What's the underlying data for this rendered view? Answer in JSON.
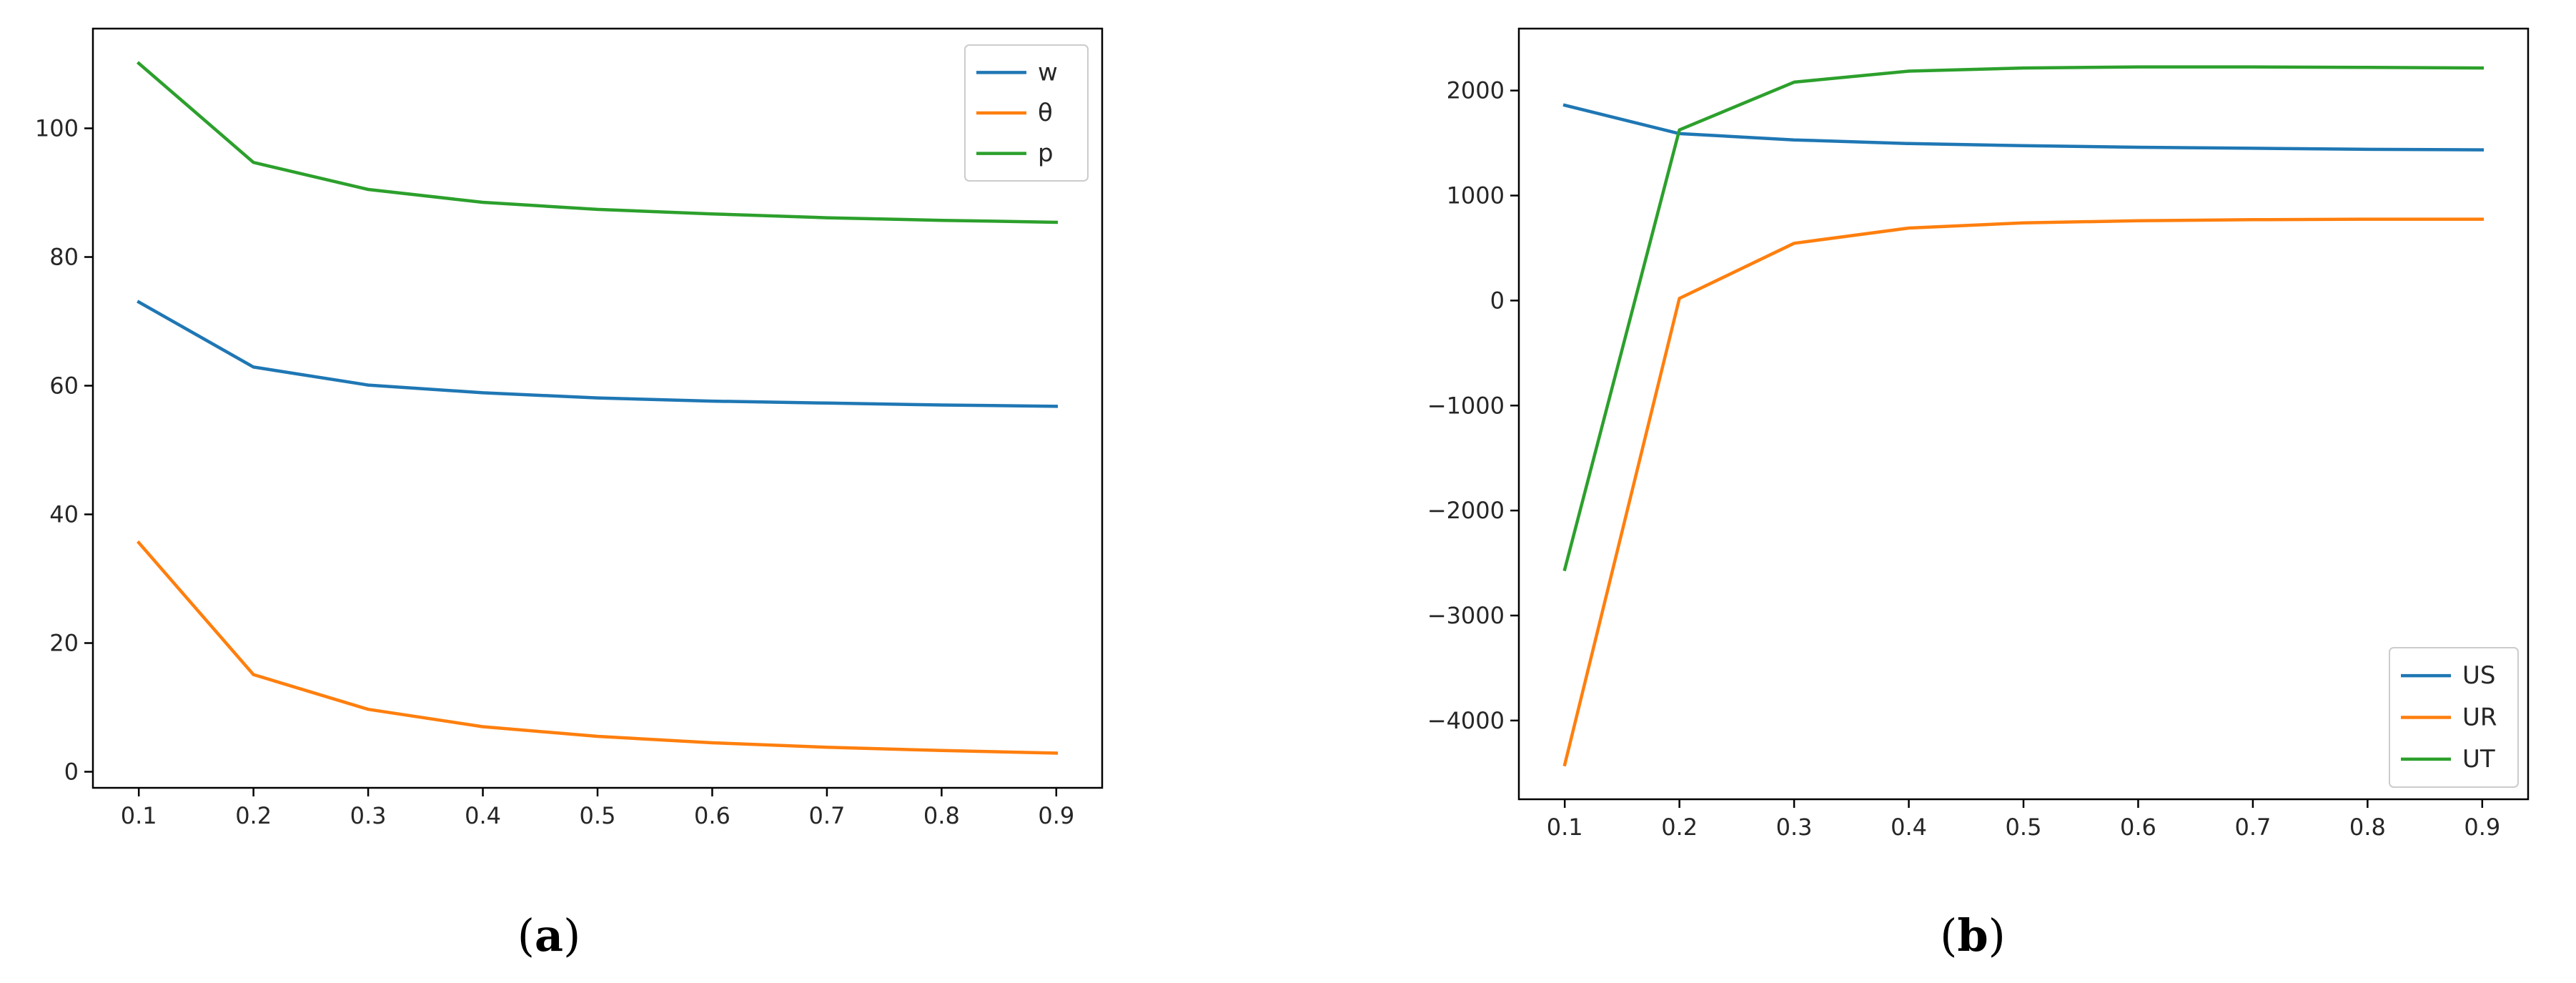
{
  "chart_data": [
    {
      "type": "line",
      "caption": "a",
      "x": [
        0.1,
        0.2,
        0.3,
        0.4,
        0.5,
        0.6,
        0.7,
        0.8,
        0.9
      ],
      "xticks": [
        "0.1",
        "0.2",
        "0.3",
        "0.4",
        "0.5",
        "0.6",
        "0.7",
        "0.8",
        "0.9"
      ],
      "yticks": [
        "0",
        "20",
        "40",
        "60",
        "80",
        "100"
      ],
      "xlim": [
        0.06,
        0.94
      ],
      "ylim": [
        -2.5,
        115.5
      ],
      "legend_position": "top-right",
      "grid": false,
      "series": [
        {
          "name": "w",
          "color": "#1f77b4",
          "values": [
            73.0,
            62.9,
            60.1,
            58.9,
            58.1,
            57.6,
            57.3,
            57.0,
            56.8
          ]
        },
        {
          "name": "θ",
          "color": "#ff7f0e",
          "values": [
            35.6,
            15.1,
            9.7,
            7.0,
            5.5,
            4.5,
            3.8,
            3.3,
            2.9
          ]
        },
        {
          "name": "p",
          "color": "#2ca02c",
          "values": [
            110.1,
            94.7,
            90.5,
            88.5,
            87.4,
            86.7,
            86.1,
            85.7,
            85.4
          ]
        }
      ]
    },
    {
      "type": "line",
      "caption": "b",
      "x": [
        0.1,
        0.2,
        0.3,
        0.4,
        0.5,
        0.6,
        0.7,
        0.8,
        0.9
      ],
      "xticks": [
        "0.1",
        "0.2",
        "0.3",
        "0.4",
        "0.5",
        "0.6",
        "0.7",
        "0.8",
        "0.9"
      ],
      "yticks": [
        "−4000",
        "−3000",
        "−2000",
        "−1000",
        "0",
        "1000",
        "2000"
      ],
      "xlim": [
        0.06,
        0.94
      ],
      "ylim": [
        -4750,
        2590
      ],
      "legend_position": "bottom-right",
      "grid": false,
      "series": [
        {
          "name": "US",
          "color": "#1f77b4",
          "values": [
            1860,
            1590,
            1530,
            1495,
            1475,
            1460,
            1450,
            1440,
            1435
          ]
        },
        {
          "name": "UR",
          "color": "#ff7f0e",
          "values": [
            -4420,
            20,
            545,
            690,
            740,
            760,
            770,
            775,
            775
          ]
        },
        {
          "name": "UT",
          "color": "#2ca02c",
          "values": [
            -2560,
            1625,
            2080,
            2185,
            2215,
            2225,
            2225,
            2220,
            2215
          ]
        }
      ]
    }
  ]
}
